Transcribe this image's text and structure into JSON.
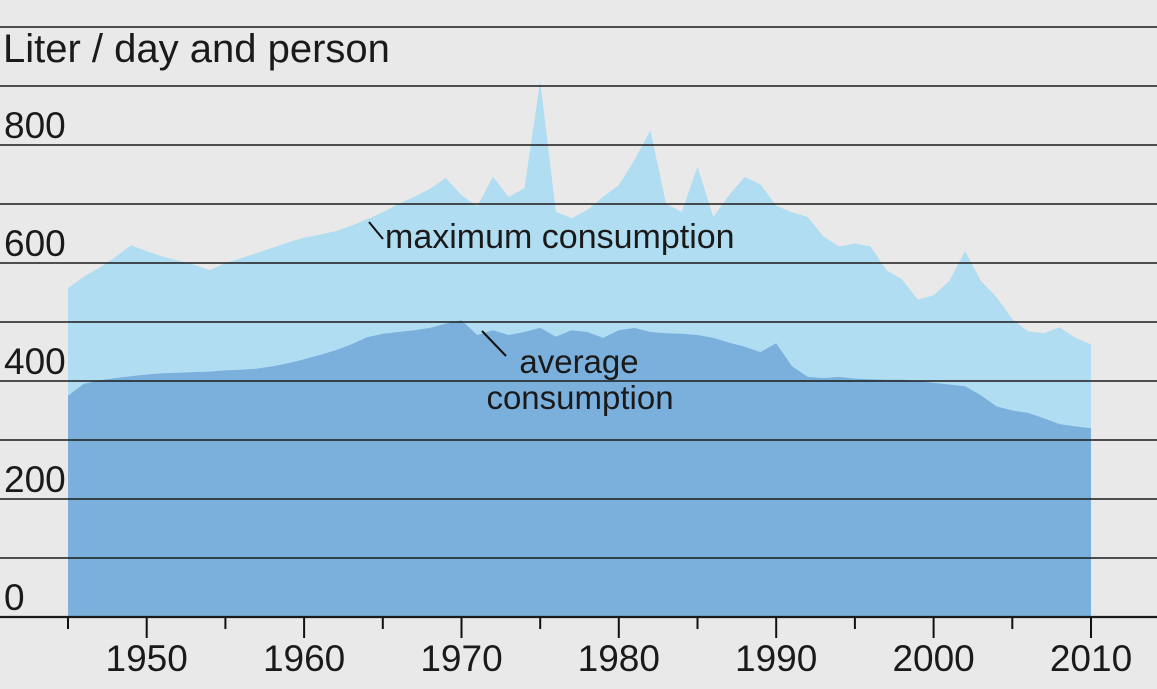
{
  "title": "Liter / day and person",
  "labels": {
    "y_axis_title": "Liter / day and person",
    "max_annotation": "maximum consumption",
    "avg_annotation_line1": "average",
    "avg_annotation_line2": "consumption"
  },
  "colors": {
    "background": "#e9e9e9",
    "max_area": "#b0ddf1",
    "avg_area": "#7bb0dd",
    "grid_line": "#1a1a1a",
    "axis_line": "#111111",
    "text": "#1a1a1a"
  },
  "chart_data": {
    "type": "area",
    "title": "Liter / day and person",
    "xlabel": "",
    "ylabel": "Liter / day and person",
    "xlim": [
      1945,
      2010
    ],
    "ylim": [
      0,
      1000
    ],
    "grid": "horizontal, every 100 units, drawn over areas",
    "legend_position": "inline annotations inside areas",
    "yticks_labeled": [
      0,
      200,
      400,
      600,
      800
    ],
    "gridline_step": 100,
    "xticks_labeled": [
      1950,
      1960,
      1970,
      1980,
      1990,
      2000,
      2010
    ],
    "xticks_minor": [
      1945,
      1955,
      1965,
      1975,
      1985,
      1995,
      2005
    ],
    "x": [
      1945,
      1946,
      1947,
      1948,
      1949,
      1950,
      1951,
      1952,
      1953,
      1954,
      1955,
      1956,
      1957,
      1958,
      1959,
      1960,
      1961,
      1962,
      1963,
      1964,
      1965,
      1966,
      1967,
      1968,
      1969,
      1970,
      1971,
      1972,
      1973,
      1974,
      1975,
      1976,
      1977,
      1978,
      1979,
      1980,
      1981,
      1982,
      1983,
      1984,
      1985,
      1986,
      1987,
      1988,
      1989,
      1990,
      1991,
      1992,
      1993,
      1994,
      1995,
      1996,
      1997,
      1998,
      1999,
      2000,
      2001,
      2002,
      2003,
      2004,
      2005,
      2006,
      2007,
      2008,
      2009,
      2010
    ],
    "series": [
      {
        "name": "maximum consumption",
        "color": "#b0ddf1",
        "values": [
          557,
          577,
          592,
          610,
          630,
          620,
          611,
          604,
          597,
          588,
          600,
          608,
          617,
          626,
          635,
          643,
          648,
          654,
          663,
          674,
          686,
          700,
          712,
          726,
          744,
          715,
          696,
          746,
          712,
          727,
          908,
          687,
          676,
          690,
          712,
          732,
          775,
          825,
          700,
          687,
          763,
          678,
          715,
          746,
          733,
          697,
          686,
          678,
          645,
          628,
          633,
          628,
          588,
          572,
          538,
          545,
          570,
          620,
          570,
          542,
          505,
          484,
          481,
          491,
          473,
          462
        ]
      },
      {
        "name": "average consumption",
        "color": "#7bb0dd",
        "values": [
          375,
          395,
          401,
          405,
          408,
          411,
          413,
          414,
          415,
          416,
          418,
          419,
          421,
          425,
          430,
          437,
          444,
          452,
          462,
          474,
          480,
          483,
          486,
          490,
          497,
          503,
          478,
          486,
          478,
          483,
          490,
          475,
          486,
          483,
          473,
          486,
          490,
          483,
          481,
          480,
          478,
          473,
          465,
          458,
          449,
          464,
          425,
          407,
          405,
          407,
          404,
          403,
          402,
          402,
          400,
          397,
          394,
          391,
          376,
          357,
          350,
          346,
          337,
          327,
          323,
          320
        ]
      }
    ]
  }
}
